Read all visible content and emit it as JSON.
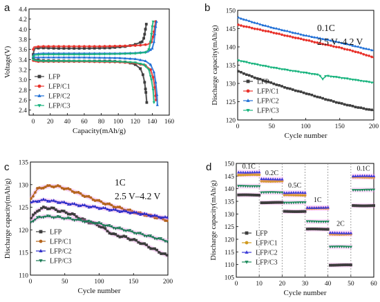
{
  "chart_data": [
    {
      "panel_label": "a",
      "type": "line",
      "xlabel": "Capacity(mAh/g)",
      "ylabel": "Voltage(V)",
      "xlim": [
        -5,
        160
      ],
      "ylim": [
        2.3,
        4.4
      ],
      "xticks": [
        0,
        20,
        40,
        60,
        80,
        100,
        120,
        140,
        160
      ],
      "yticks": [
        2.4,
        2.6,
        2.8,
        3.0,
        3.2,
        3.4,
        3.6,
        3.8,
        4.0,
        4.2,
        4.4
      ],
      "ytick_labels": [
        "2.4",
        "2.6",
        "2.8",
        "3.0",
        "3.2",
        "3.4",
        "3.6",
        "3.8",
        "4.0",
        "4.2",
        "4.4"
      ],
      "legend_position": "bottom-left",
      "series": [
        {
          "name": "LFP",
          "color": "#3d3d3d",
          "marker": "square",
          "charge": [
            [
              0,
              3.5
            ],
            [
              0.5,
              3.56
            ],
            [
              2,
              3.62
            ],
            [
              10,
              3.63
            ],
            [
              30,
              3.62
            ],
            [
              60,
              3.62
            ],
            [
              90,
              3.63
            ],
            [
              110,
              3.66
            ],
            [
              120,
              3.7
            ],
            [
              128,
              3.75
            ],
            [
              130,
              3.82
            ],
            [
              131,
              3.9
            ],
            [
              132,
              4.0
            ],
            [
              133,
              4.1
            ]
          ],
          "discharge": [
            [
              0,
              3.43
            ],
            [
              2,
              3.4
            ],
            [
              10,
              3.38
            ],
            [
              50,
              3.37
            ],
            [
              90,
              3.37
            ],
            [
              110,
              3.35
            ],
            [
              120,
              3.3
            ],
            [
              126,
              3.22
            ],
            [
              129,
              3.1
            ],
            [
              131,
              2.95
            ],
            [
              132.5,
              2.75
            ],
            [
              133.5,
              2.55
            ]
          ]
        },
        {
          "name": "LFP/C1",
          "color": "#e8312a",
          "marker": "circle",
          "charge": [
            [
              0,
              3.6
            ],
            [
              0.5,
              3.64
            ],
            [
              2,
              3.65
            ],
            [
              10,
              3.66
            ],
            [
              40,
              3.66
            ],
            [
              80,
              3.66
            ],
            [
              110,
              3.67
            ],
            [
              125,
              3.68
            ],
            [
              135,
              3.7
            ],
            [
              139,
              3.75
            ],
            [
              141,
              3.85
            ],
            [
              142,
              3.95
            ],
            [
              143,
              4.05
            ],
            [
              144,
              4.15
            ]
          ],
          "discharge": [
            [
              0,
              3.38
            ],
            [
              3,
              3.36
            ],
            [
              10,
              3.36
            ],
            [
              60,
              3.36
            ],
            [
              100,
              3.35
            ],
            [
              120,
              3.33
            ],
            [
              132,
              3.28
            ],
            [
              138,
              3.2
            ],
            [
              141,
              3.05
            ],
            [
              143,
              2.85
            ],
            [
              144.5,
              2.6
            ]
          ]
        },
        {
          "name": "LFP/C2",
          "color": "#1f6fd6",
          "marker": "triangle-up",
          "charge": [
            [
              0,
              3.45
            ],
            [
              0.5,
              3.5
            ],
            [
              2,
              3.51
            ],
            [
              10,
              3.52
            ],
            [
              60,
              3.52
            ],
            [
              100,
              3.52
            ],
            [
              120,
              3.53
            ],
            [
              135,
              3.55
            ],
            [
              140,
              3.62
            ],
            [
              142,
              3.75
            ],
            [
              143,
              3.9
            ],
            [
              144,
              4.05
            ],
            [
              145,
              4.15
            ]
          ],
          "discharge": [
            [
              0,
              3.46
            ],
            [
              3,
              3.44
            ],
            [
              10,
              3.44
            ],
            [
              60,
              3.44
            ],
            [
              100,
              3.43
            ],
            [
              120,
              3.41
            ],
            [
              132,
              3.37
            ],
            [
              138,
              3.3
            ],
            [
              142,
              3.15
            ],
            [
              144,
              2.95
            ],
            [
              145.5,
              2.7
            ],
            [
              146,
              2.5
            ]
          ]
        },
        {
          "name": "LFP/C3",
          "color": "#17b37d",
          "marker": "triangle-down",
          "charge": [
            [
              0,
              3.45
            ],
            [
              0.5,
              3.48
            ],
            [
              2,
              3.49
            ],
            [
              10,
              3.5
            ],
            [
              60,
              3.5
            ],
            [
              100,
              3.51
            ],
            [
              120,
              3.52
            ],
            [
              132,
              3.54
            ],
            [
              136,
              3.6
            ],
            [
              138,
              3.75
            ],
            [
              139,
              3.9
            ],
            [
              140,
              4.05
            ],
            [
              141,
              4.15
            ]
          ],
          "discharge": [
            [
              0,
              3.4
            ],
            [
              3,
              3.38
            ],
            [
              10,
              3.37
            ],
            [
              60,
              3.37
            ],
            [
              100,
              3.36
            ],
            [
              120,
              3.34
            ],
            [
              130,
              3.3
            ],
            [
              136,
              3.2
            ],
            [
              139,
              3.0
            ],
            [
              141,
              2.8
            ],
            [
              142,
              2.55
            ]
          ]
        }
      ]
    },
    {
      "panel_label": "b",
      "type": "line",
      "xlabel": "Cycle number",
      "ylabel": "Discharge capacity(mAh/g)",
      "xlim": [
        0,
        200
      ],
      "ylim": [
        120,
        150
      ],
      "xticks": [
        0,
        50,
        100,
        150,
        200
      ],
      "yticks": [
        120,
        125,
        130,
        135,
        140,
        145,
        150
      ],
      "annotations": [
        "0.1C",
        "2.5 V–4.2 V"
      ],
      "legend_position": "bottom-left",
      "series": [
        {
          "name": "LFP",
          "color": "#3d3d3d",
          "marker": "square",
          "x": [
            1,
            25,
            50,
            75,
            100,
            125,
            150,
            175,
            200
          ],
          "y": [
            133.3,
            131.6,
            130.1,
            128.6,
            127.3,
            125.9,
            124.6,
            123.5,
            122.6
          ]
        },
        {
          "name": "LFP/C1",
          "color": "#e8312a",
          "marker": "circle",
          "x": [
            1,
            25,
            50,
            75,
            100,
            125,
            150,
            175,
            195,
            200
          ],
          "y": [
            146.0,
            145.0,
            144.0,
            142.9,
            141.9,
            140.8,
            139.8,
            138.6,
            137.4,
            137.0
          ]
        },
        {
          "name": "LFP/C2",
          "color": "#1f6fd6",
          "marker": "triangle-up",
          "x": [
            1,
            25,
            50,
            75,
            100,
            125,
            150,
            175,
            195,
            200
          ],
          "y": [
            148.0,
            146.6,
            145.3,
            144.2,
            143.1,
            142.2,
            141.2,
            140.1,
            139.2,
            139.0
          ]
        },
        {
          "name": "LFP/C3",
          "color": "#17b37d",
          "marker": "triangle-down",
          "x": [
            1,
            25,
            50,
            75,
            100,
            120,
            125,
            130,
            150,
            175,
            200
          ],
          "y": [
            136.3,
            135.3,
            134.4,
            133.6,
            132.9,
            132.3,
            131.2,
            132.1,
            131.6,
            130.9,
            130.2
          ]
        }
      ]
    },
    {
      "panel_label": "c",
      "type": "line",
      "xlabel": "Cycle number",
      "ylabel": "Discharge capacity(mAh/g)",
      "xlim": [
        0,
        200
      ],
      "ylim": [
        110,
        135
      ],
      "xticks": [
        0,
        50,
        100,
        150,
        200
      ],
      "yticks": [
        110,
        115,
        120,
        125,
        130,
        135
      ],
      "annotations": [
        "1C",
        "2.5 V–4.2 V"
      ],
      "legend_position": "bottom-left",
      "series": [
        {
          "name": "LFP",
          "color": "#3d3d3d",
          "marker": "square",
          "x": [
            1,
            10,
            20,
            30,
            40,
            60,
            80,
            100,
            120,
            140,
            160,
            180,
            200
          ],
          "y": [
            122.5,
            124.3,
            124.9,
            124.8,
            124.3,
            123.5,
            122.0,
            121.0,
            119.0,
            118.3,
            117.2,
            115.7,
            114.2
          ]
        },
        {
          "name": "LFP/C1",
          "color": "#b5651d",
          "marker": "circle",
          "x": [
            1,
            10,
            20,
            30,
            40,
            50,
            60,
            80,
            100,
            120,
            140,
            160,
            180,
            200
          ],
          "y": [
            127.0,
            129.0,
            129.5,
            129.7,
            129.6,
            129.2,
            128.7,
            127.5,
            126.3,
            125.3,
            124.4,
            123.6,
            122.9,
            122.1
          ]
        },
        {
          "name": "LFP/C2",
          "color": "#2a2ac8",
          "marker": "triangle-up",
          "x": [
            1,
            10,
            20,
            40,
            60,
            80,
            100,
            120,
            140,
            160,
            180,
            200
          ],
          "y": [
            126.0,
            126.4,
            126.6,
            126.2,
            125.7,
            125.3,
            124.9,
            124.4,
            124.0,
            123.6,
            123.1,
            122.6
          ]
        },
        {
          "name": "LFP/C3",
          "color": "#1a7a55",
          "marker": "triangle-down",
          "x": [
            1,
            10,
            20,
            40,
            60,
            80,
            100,
            120,
            140,
            160,
            180,
            200
          ],
          "y": [
            121.8,
            122.6,
            123.0,
            122.8,
            122.4,
            121.9,
            121.4,
            120.6,
            119.9,
            119.1,
            118.3,
            117.5
          ]
        }
      ]
    },
    {
      "panel_label": "d",
      "type": "scatter",
      "xlabel": "Cycle number",
      "ylabel": "Discharge capacity(mAh/g)",
      "xlim": [
        0,
        60
      ],
      "ylim": [
        105,
        150
      ],
      "xticks": [
        0,
        10,
        20,
        30,
        40,
        50,
        60
      ],
      "yticks": [
        105,
        110,
        115,
        120,
        125,
        130,
        135,
        140,
        145,
        150
      ],
      "dividers": [
        10,
        20,
        30,
        40,
        50
      ],
      "rate_labels": [
        "0.1C",
        "0.2C",
        "0.5C",
        "1C",
        "2C",
        "0.1C"
      ],
      "legend_position": "bottom-left",
      "segments": [
        {
          "x": [
            1,
            10
          ],
          "values": {
            "LFP": 137.5,
            "LFP/C1": 145.5,
            "LFP/C2": 146.5,
            "LFP/C3": 141.0
          }
        },
        {
          "x": [
            11,
            20
          ],
          "values": {
            "LFP": 134.5,
            "LFP/C1": 143.0,
            "LFP/C2": 143.8,
            "LFP/C3": 138.5
          }
        },
        {
          "x": [
            21,
            30
          ],
          "values": {
            "LFP": 131.0,
            "LFP/C1": 137.5,
            "LFP/C2": 138.4,
            "LFP/C3": 134.5
          }
        },
        {
          "x": [
            31,
            40
          ],
          "values": {
            "LFP": 124.0,
            "LFP/C1": 132.2,
            "LFP/C2": 132.5,
            "LFP/C3": 127.0
          }
        },
        {
          "x": [
            41,
            50
          ],
          "values": {
            "LFP": 109.8,
            "LFP/C1": 122.0,
            "LFP/C2": 122.5,
            "LFP/C3": 117.0
          }
        },
        {
          "x": [
            51,
            60
          ],
          "values": {
            "LFP": 133.3,
            "LFP/C1": 144.5,
            "LFP/C2": 145.0,
            "LFP/C3": 139.5
          }
        }
      ],
      "series": [
        {
          "name": "LFP",
          "color": "#3d3d3d",
          "marker": "square"
        },
        {
          "name": "LFP/C1",
          "color": "#d09a1f",
          "marker": "circle"
        },
        {
          "name": "LFP/C2",
          "color": "#3a3ad8",
          "marker": "triangle-up"
        },
        {
          "name": "LFP/C3",
          "color": "#1a8a5a",
          "marker": "triangle-down"
        }
      ]
    }
  ]
}
